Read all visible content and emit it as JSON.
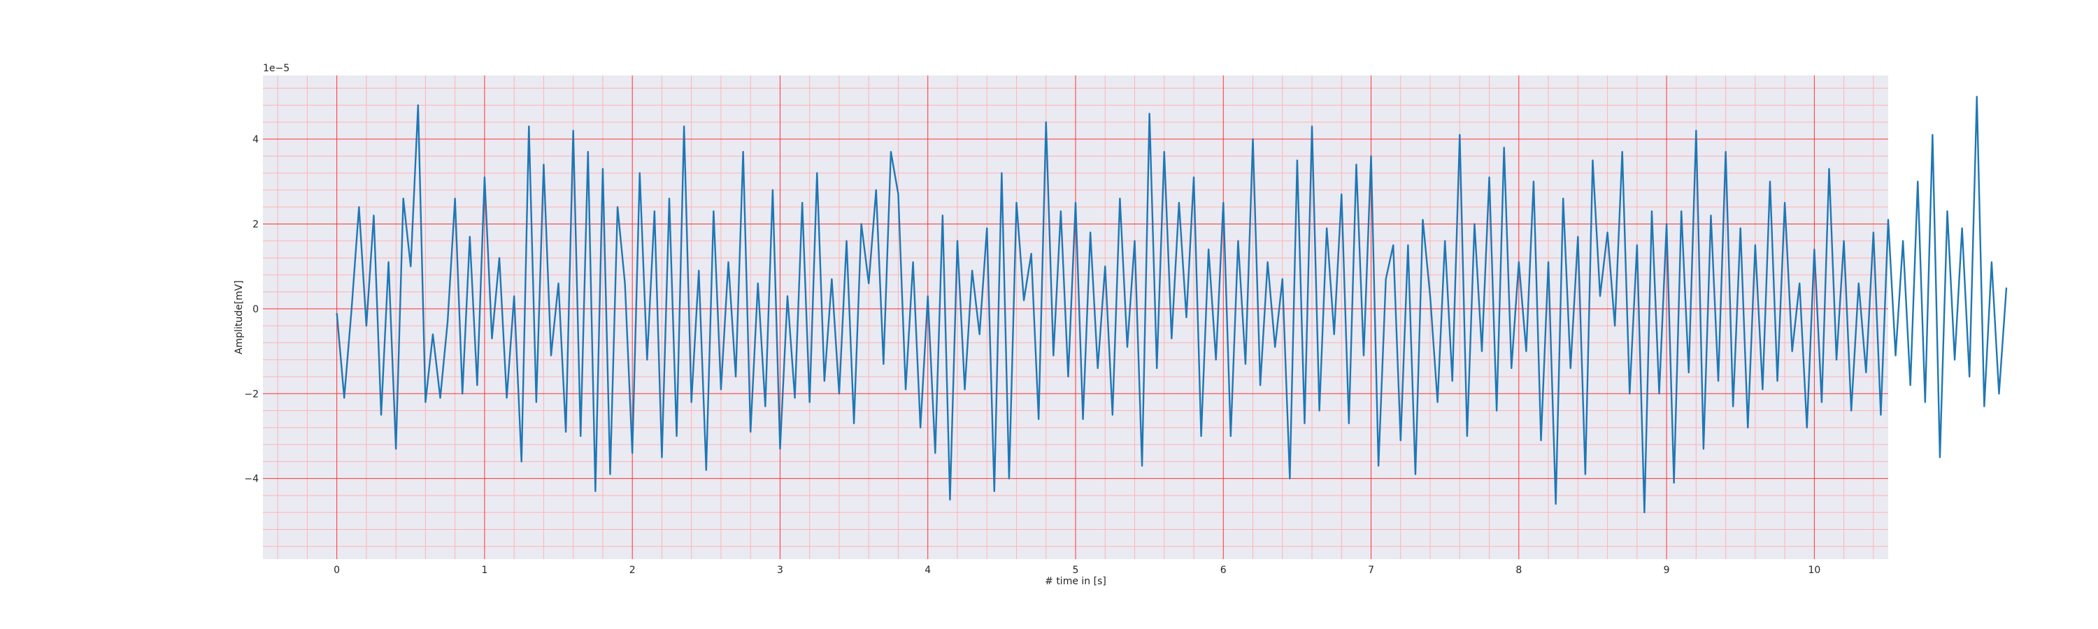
{
  "chart_data": {
    "type": "line",
    "title": "",
    "xlabel": "# time in [s]",
    "ylabel": "Amplitude[mV]",
    "y_offset_label": "1e−5",
    "xlim": [
      -0.5,
      10.5
    ],
    "ylim": [
      -5.9,
      5.5
    ],
    "xticks": [
      0,
      1,
      2,
      3,
      4,
      5,
      6,
      7,
      8,
      9,
      10
    ],
    "xtick_labels": [
      "0",
      "1",
      "2",
      "3",
      "4",
      "5",
      "6",
      "7",
      "8",
      "9",
      "10"
    ],
    "yticks": [
      -4,
      -2,
      0,
      2,
      4
    ],
    "ytick_labels": [
      "−4",
      "−2",
      "0",
      "2",
      "4"
    ],
    "major_grid": true,
    "minor_grid": true,
    "colors": {
      "line": "#1f77b4",
      "plot_background": "#eaeaf2",
      "major_grid": "#ff3333",
      "minor_grid": "#ffb3b3"
    },
    "series": [
      {
        "name": "",
        "x_start": 0,
        "x_step": 0.05,
        "values": [
          -0.1,
          -2.1,
          0.0,
          2.4,
          -0.4,
          2.2,
          -2.5,
          1.1,
          -3.3,
          2.6,
          1.0,
          4.8,
          -2.2,
          -0.6,
          -2.1,
          -0.3,
          2.6,
          -2.0,
          1.7,
          -1.8,
          3.1,
          -0.7,
          1.2,
          -2.1,
          0.3,
          -3.6,
          4.3,
          -2.2,
          3.4,
          -1.1,
          0.6,
          -2.9,
          4.2,
          -3.0,
          3.7,
          -4.3,
          3.3,
          -3.9,
          2.4,
          0.6,
          -3.4,
          3.2,
          -1.2,
          2.3,
          -3.5,
          2.6,
          -3.0,
          4.3,
          -2.2,
          0.9,
          -3.8,
          2.3,
          -1.9,
          1.1,
          -1.6,
          3.7,
          -2.9,
          0.6,
          -2.3,
          2.8,
          -3.3,
          0.3,
          -2.1,
          2.5,
          -2.2,
          3.2,
          -1.7,
          0.7,
          -2.0,
          1.6,
          -2.7,
          2.0,
          0.6,
          2.8,
          -1.3,
          3.7,
          2.7,
          -1.9,
          1.1,
          -2.8,
          0.3,
          -3.4,
          2.2,
          -4.5,
          1.6,
          -1.9,
          0.9,
          -0.6,
          1.9,
          -4.3,
          3.2,
          -4.0,
          2.5,
          0.2,
          1.3,
          -2.6,
          4.4,
          -1.1,
          2.3,
          -1.6,
          2.5,
          -2.6,
          1.8,
          -1.4,
          1.0,
          -2.5,
          2.6,
          -0.9,
          1.6,
          -3.7,
          4.6,
          -1.4,
          3.7,
          -0.7,
          2.5,
          -0.2,
          3.1,
          -3.0,
          1.4,
          -1.2,
          2.5,
          -3.0,
          1.6,
          -1.3,
          4.0,
          -1.8,
          1.1,
          -0.9,
          0.7,
          -4.0,
          3.5,
          -2.7,
          4.3,
          -2.4,
          1.9,
          -0.6,
          2.7,
          -2.7,
          3.4,
          -1.1,
          3.6,
          -3.7,
          0.7,
          1.5,
          -3.1,
          1.5,
          -3.9,
          2.1,
          0.3,
          -2.2,
          1.6,
          -1.7,
          4.1,
          -3.0,
          2.0,
          -1.0,
          3.1,
          -2.4,
          3.8,
          -1.4,
          1.1,
          -1.0,
          3.0,
          -3.1,
          1.1,
          -4.6,
          2.6,
          -1.4,
          1.7,
          -3.9,
          3.5,
          0.3,
          1.8,
          -0.4,
          3.7,
          -2.0,
          1.5,
          -4.8,
          2.3,
          -2.0,
          2.0,
          -4.1,
          2.3,
          -1.5,
          4.2,
          -3.3,
          2.2,
          -1.7,
          3.7,
          -2.3,
          1.9,
          -2.8,
          1.5,
          -1.9,
          3.0,
          -1.7,
          2.5,
          -1.0,
          0.6,
          -2.8,
          1.4,
          -2.2,
          3.3,
          -1.2,
          1.6,
          -2.4,
          0.6,
          -1.5,
          1.8,
          -2.5,
          2.1,
          -1.1,
          1.6,
          -1.8,
          3.0,
          -2.2,
          4.1,
          -3.5,
          2.3,
          -1.2,
          1.9,
          -1.6,
          5.0,
          -2.3,
          1.1,
          -2.0,
          0.5
        ]
      }
    ]
  }
}
